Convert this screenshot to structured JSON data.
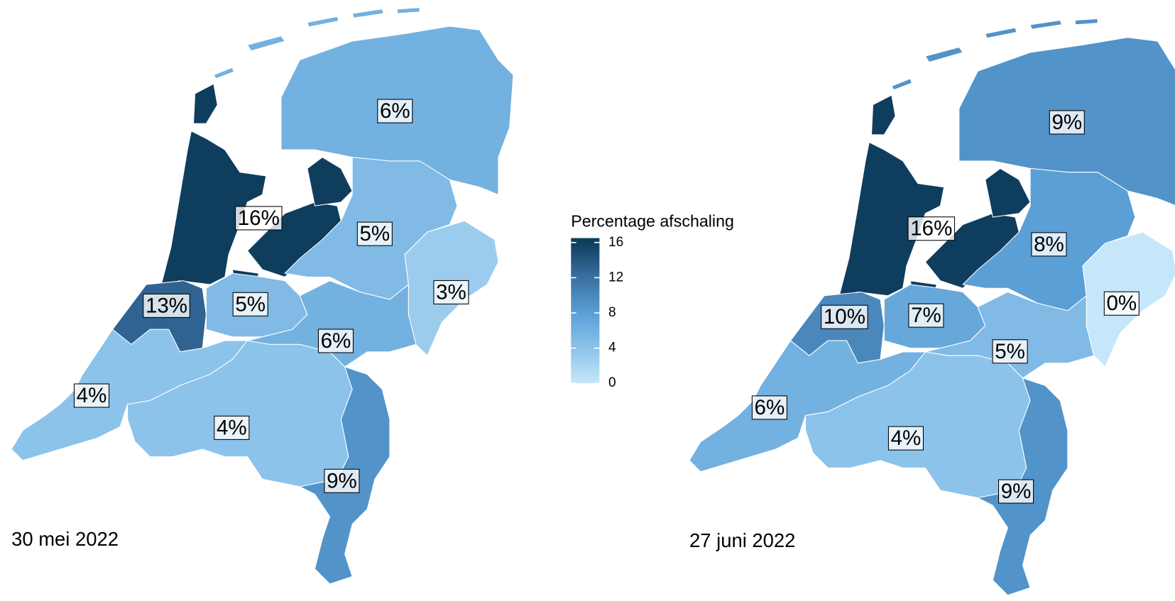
{
  "maps": [
    {
      "date": "30 mei 2022",
      "regions": [
        {
          "value": 6,
          "label": "6%"
        },
        {
          "value": 16,
          "label": "16%"
        },
        {
          "value": 13,
          "label": "13%"
        },
        {
          "value": 5,
          "label": "5%"
        },
        {
          "value": 5,
          "label": "5%"
        },
        {
          "value": 3,
          "label": "3%"
        },
        {
          "value": 6,
          "label": "6%"
        },
        {
          "value": 4,
          "label": "4%"
        },
        {
          "value": 4,
          "label": "4%"
        },
        {
          "value": 9,
          "label": "9%"
        }
      ]
    },
    {
      "date": "27 juni 2022",
      "regions": [
        {
          "value": 9,
          "label": "9%"
        },
        {
          "value": 16,
          "label": "16%"
        },
        {
          "value": 10,
          "label": "10%"
        },
        {
          "value": 7,
          "label": "7%"
        },
        {
          "value": 8,
          "label": "8%"
        },
        {
          "value": 0,
          "label": "0%"
        },
        {
          "value": 5,
          "label": "5%"
        },
        {
          "value": 6,
          "label": "6%"
        },
        {
          "value": 4,
          "label": "4%"
        },
        {
          "value": 9,
          "label": "9%"
        }
      ]
    }
  ],
  "legend": {
    "title": "Percentage afschaling",
    "ticks": [
      0,
      4,
      8,
      12,
      16
    ],
    "colors": [
      "#c6e6fa",
      "#8cc3ea",
      "#5a9fd6",
      "#3a70a2",
      "#0f3d5e"
    ],
    "lim": [
      0,
      16.5
    ]
  }
}
